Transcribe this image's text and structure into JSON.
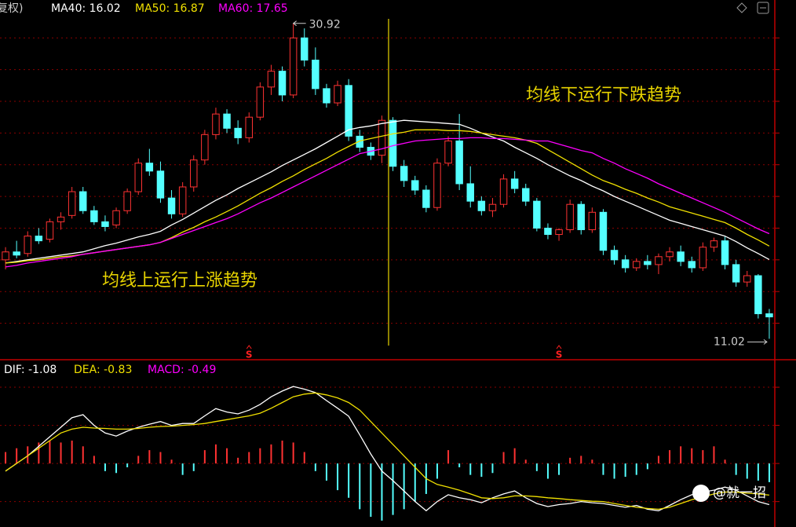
{
  "chart_data": [
    {
      "type": "candlestick",
      "adjustment_label": "复权)",
      "up_color": "#ff3232",
      "down_color": "#54ffff",
      "ylim": [
        9.7,
        31.4
      ],
      "yticks": [
        12,
        14,
        16,
        18,
        20,
        22,
        24,
        26,
        28,
        30
      ],
      "grid": true,
      "high_label": "30.92",
      "low_label": "11.02",
      "annotations": [
        "均线上运行上涨趋势",
        "均线下运行下跌趋势"
      ],
      "signals": [
        {
          "label": "S",
          "index": 22
        },
        {
          "label": "S",
          "index": 50
        }
      ],
      "ohlc": [
        [
          16.0,
          16.8,
          15.4,
          16.5
        ],
        [
          16.5,
          17.2,
          16.1,
          16.3
        ],
        [
          16.4,
          17.8,
          16.2,
          17.5
        ],
        [
          17.5,
          18.0,
          17.0,
          17.2
        ],
        [
          17.3,
          18.6,
          17.1,
          18.4
        ],
        [
          18.4,
          19.0,
          17.9,
          18.7
        ],
        [
          18.8,
          20.6,
          18.6,
          20.3
        ],
        [
          20.3,
          20.6,
          18.9,
          19.1
        ],
        [
          19.1,
          19.4,
          18.2,
          18.4
        ],
        [
          18.4,
          18.8,
          17.8,
          18.1
        ],
        [
          18.2,
          19.3,
          18.0,
          19.1
        ],
        [
          19.1,
          20.5,
          18.9,
          20.3
        ],
        [
          20.3,
          22.4,
          20.1,
          22.1
        ],
        [
          22.1,
          23.0,
          21.3,
          21.6
        ],
        [
          21.6,
          22.2,
          19.6,
          19.9
        ],
        [
          19.9,
          20.4,
          18.6,
          18.9
        ],
        [
          18.9,
          20.9,
          18.7,
          20.6
        ],
        [
          20.6,
          22.6,
          20.3,
          22.3
        ],
        [
          22.3,
          24.2,
          22.0,
          23.9
        ],
        [
          23.9,
          25.6,
          23.6,
          25.2
        ],
        [
          25.2,
          25.5,
          24.0,
          24.3
        ],
        [
          24.3,
          24.8,
          23.3,
          23.7
        ],
        [
          23.7,
          25.3,
          23.4,
          25.0
        ],
        [
          25.0,
          27.2,
          24.8,
          26.9
        ],
        [
          26.9,
          28.3,
          26.4,
          27.9
        ],
        [
          27.9,
          28.2,
          26.0,
          26.4
        ],
        [
          26.4,
          30.92,
          26.2,
          30.0
        ],
        [
          30.0,
          30.6,
          28.2,
          28.6
        ],
        [
          28.6,
          29.4,
          26.4,
          26.8
        ],
        [
          26.8,
          27.1,
          25.6,
          25.9
        ],
        [
          25.9,
          27.3,
          25.7,
          27.0
        ],
        [
          27.0,
          27.4,
          23.5,
          23.8
        ],
        [
          23.8,
          24.2,
          22.8,
          23.1
        ],
        [
          23.1,
          23.4,
          22.3,
          22.6
        ],
        [
          22.6,
          25.1,
          22.1,
          24.8
        ],
        [
          24.8,
          25.0,
          21.6,
          21.9
        ],
        [
          21.9,
          22.3,
          20.6,
          21.0
        ],
        [
          21.0,
          21.3,
          20.1,
          20.4
        ],
        [
          20.4,
          20.7,
          19.0,
          19.3
        ],
        [
          19.3,
          22.4,
          19.1,
          22.1
        ],
        [
          22.1,
          23.8,
          21.9,
          23.5
        ],
        [
          23.5,
          25.2,
          20.4,
          20.8
        ],
        [
          20.8,
          21.9,
          19.3,
          19.7
        ],
        [
          19.7,
          20.0,
          18.8,
          19.1
        ],
        [
          19.1,
          19.9,
          18.7,
          19.5
        ],
        [
          19.5,
          21.4,
          19.3,
          21.1
        ],
        [
          21.1,
          21.6,
          20.2,
          20.5
        ],
        [
          20.5,
          20.8,
          19.4,
          19.7
        ],
        [
          19.7,
          19.9,
          17.8,
          18.0
        ],
        [
          18.0,
          18.3,
          17.3,
          17.6
        ],
        [
          17.6,
          18.0,
          17.2,
          17.9
        ],
        [
          17.9,
          19.8,
          17.7,
          19.5
        ],
        [
          19.5,
          19.7,
          17.6,
          17.9
        ],
        [
          17.9,
          19.3,
          17.7,
          19.0
        ],
        [
          19.0,
          19.2,
          16.3,
          16.6
        ],
        [
          16.6,
          16.9,
          15.7,
          16.0
        ],
        [
          16.0,
          16.3,
          15.2,
          15.5
        ],
        [
          15.5,
          16.1,
          15.3,
          15.9
        ],
        [
          15.9,
          16.3,
          15.4,
          15.7
        ],
        [
          15.7,
          16.4,
          15.1,
          16.2
        ],
        [
          16.2,
          16.8,
          15.9,
          16.5
        ],
        [
          16.5,
          16.9,
          15.6,
          15.9
        ],
        [
          15.9,
          16.2,
          15.2,
          15.5
        ],
        [
          15.5,
          17.1,
          15.3,
          16.8
        ],
        [
          16.8,
          17.4,
          16.5,
          17.2
        ],
        [
          17.2,
          17.5,
          15.4,
          15.7
        ],
        [
          15.7,
          16.0,
          14.3,
          14.6
        ],
        [
          14.6,
          15.3,
          14.3,
          15.0
        ],
        [
          15.0,
          15.1,
          12.3,
          12.6
        ],
        [
          12.6,
          12.9,
          11.02,
          12.4
        ]
      ],
      "series": [
        {
          "name": "MA40: 16.02",
          "color": "#ffffff",
          "values": [
            15.8,
            15.9,
            16.0,
            16.1,
            16.2,
            16.3,
            16.4,
            16.5,
            16.7,
            16.9,
            17.05,
            17.25,
            17.45,
            17.6,
            17.8,
            18.2,
            18.55,
            18.95,
            19.35,
            19.75,
            20.1,
            20.5,
            20.85,
            21.2,
            21.55,
            21.95,
            22.3,
            22.65,
            23.0,
            23.4,
            23.8,
            24.2,
            24.35,
            24.45,
            24.6,
            24.7,
            24.8,
            24.75,
            24.7,
            24.65,
            24.6,
            24.55,
            24.3,
            24.0,
            23.75,
            23.5,
            23.1,
            22.75,
            22.4,
            22.0,
            21.65,
            21.3,
            21.0,
            20.65,
            20.35,
            20.0,
            19.7,
            19.4,
            19.1,
            18.8,
            18.5,
            18.3,
            18.1,
            17.9,
            17.7,
            17.5,
            17.15,
            16.75,
            16.4,
            16.02
          ]
        },
        {
          "name": "MA50: 16.87",
          "color": "#f0e000",
          "values": [
            15.8,
            15.85,
            15.95,
            16.0,
            16.1,
            16.2,
            16.25,
            16.35,
            16.45,
            16.55,
            16.65,
            16.75,
            16.85,
            16.95,
            17.1,
            17.4,
            17.75,
            18.05,
            18.4,
            18.7,
            19.05,
            19.4,
            19.8,
            20.2,
            20.55,
            20.95,
            21.3,
            21.7,
            22.05,
            22.4,
            22.8,
            23.15,
            23.5,
            23.65,
            23.8,
            23.95,
            24.05,
            24.2,
            24.2,
            24.2,
            24.15,
            24.15,
            24.1,
            24.0,
            23.9,
            23.8,
            23.7,
            23.55,
            23.35,
            22.95,
            22.55,
            22.15,
            21.75,
            21.35,
            21.0,
            20.75,
            20.45,
            20.2,
            19.9,
            19.65,
            19.35,
            19.15,
            18.95,
            18.75,
            18.55,
            18.35,
            18.0,
            17.6,
            17.25,
            16.87
          ]
        },
        {
          "name": "MA60: 17.65",
          "color": "#ff00ff",
          "values": [
            15.55,
            15.65,
            15.8,
            15.9,
            16.0,
            16.1,
            16.2,
            16.35,
            16.45,
            16.55,
            16.65,
            16.75,
            16.85,
            16.95,
            17.1,
            17.35,
            17.6,
            17.85,
            18.1,
            18.35,
            18.6,
            18.9,
            19.25,
            19.6,
            19.9,
            20.25,
            20.6,
            20.95,
            21.3,
            21.65,
            22.0,
            22.35,
            22.7,
            22.85,
            23.0,
            23.2,
            23.35,
            23.5,
            23.55,
            23.6,
            23.65,
            23.65,
            23.7,
            23.7,
            23.65,
            23.65,
            23.6,
            23.55,
            23.5,
            23.5,
            23.3,
            23.1,
            22.9,
            22.75,
            22.4,
            22.1,
            21.75,
            21.45,
            21.15,
            20.8,
            20.5,
            20.2,
            19.9,
            19.6,
            19.3,
            19.0,
            18.65,
            18.3,
            17.95,
            17.65
          ]
        }
      ]
    },
    {
      "type": "line",
      "ylim": [
        -1.44,
        2.64
      ],
      "yticks": [
        -1,
        0,
        1,
        2
      ],
      "grid": true,
      "series": [
        {
          "name": "DIF: -1.08",
          "color": "#ffffff",
          "values": [
            -0.2,
            0.0,
            0.2,
            0.45,
            0.7,
            0.95,
            1.2,
            1.28,
            1.0,
            0.8,
            0.72,
            0.85,
            0.95,
            1.03,
            1.1,
            1.0,
            1.05,
            1.05,
            1.25,
            1.44,
            1.35,
            1.3,
            1.4,
            1.55,
            1.75,
            1.9,
            2.02,
            1.95,
            1.86,
            1.65,
            1.45,
            1.24,
            0.75,
            0.25,
            -0.2,
            -0.45,
            -0.72,
            -1.0,
            -1.24,
            -1.0,
            -0.82,
            -0.9,
            -0.95,
            -1.03,
            -0.9,
            -0.8,
            -0.72,
            -0.9,
            -1.05,
            -1.13,
            -1.08,
            -1.05,
            -1.0,
            -1.03,
            -1.05,
            -1.1,
            -1.15,
            -1.1,
            -1.2,
            -1.24,
            -1.1,
            -0.95,
            -0.82,
            -0.75,
            -0.7,
            -0.62,
            -0.7,
            -0.85,
            -1.0,
            -1.08
          ]
        },
        {
          "name": "DEA: -0.83",
          "color": "#f0e000",
          "values": [
            -0.2,
            0.0,
            0.2,
            0.4,
            0.6,
            0.8,
            0.9,
            0.95,
            0.93,
            0.92,
            0.9,
            0.9,
            0.92,
            0.95,
            0.97,
            0.98,
            1.0,
            1.02,
            1.05,
            1.1,
            1.15,
            1.2,
            1.25,
            1.32,
            1.45,
            1.6,
            1.75,
            1.82,
            1.85,
            1.8,
            1.72,
            1.6,
            1.4,
            1.1,
            0.8,
            0.5,
            0.2,
            -0.1,
            -0.4,
            -0.55,
            -0.62,
            -0.7,
            -0.8,
            -0.9,
            -0.92,
            -0.9,
            -0.85,
            -0.85,
            -0.87,
            -0.9,
            -0.92,
            -0.95,
            -0.97,
            -0.99,
            -1.0,
            -1.05,
            -1.1,
            -1.15,
            -1.18,
            -1.2,
            -1.15,
            -1.05,
            -0.95,
            -0.88,
            -0.8,
            -0.75,
            -0.75,
            -0.78,
            -0.8,
            -0.83
          ]
        },
        {
          "name": "MACD: -0.49",
          "type": "bar",
          "color": "#ff00ff",
          "up_color": "#ff3232",
          "down_color": "#54ffff",
          "values": [
            0.3,
            0.4,
            0.45,
            0.55,
            0.6,
            0.55,
            0.6,
            0.45,
            0.2,
            -0.2,
            -0.25,
            -0.1,
            0.2,
            0.35,
            0.3,
            0.1,
            -0.3,
            -0.2,
            0.35,
            0.5,
            0.4,
            0.15,
            0.3,
            0.4,
            0.5,
            0.6,
            0.55,
            0.3,
            -0.2,
            -0.45,
            -0.7,
            -0.9,
            -1.2,
            -1.4,
            -1.5,
            -1.35,
            -1.2,
            -1.0,
            -0.8,
            -0.4,
            0.35,
            -0.1,
            -0.3,
            -0.35,
            -0.25,
            0.3,
            0.4,
            0.1,
            -0.2,
            -0.4,
            -0.3,
            0.15,
            0.2,
            0.1,
            -0.3,
            -0.4,
            -0.35,
            -0.3,
            -0.15,
            0.2,
            0.35,
            0.45,
            0.4,
            0.35,
            0.45,
            0.1,
            -0.3,
            -0.4,
            -0.45,
            -0.49
          ]
        }
      ]
    }
  ],
  "watermark": "@就一招"
}
